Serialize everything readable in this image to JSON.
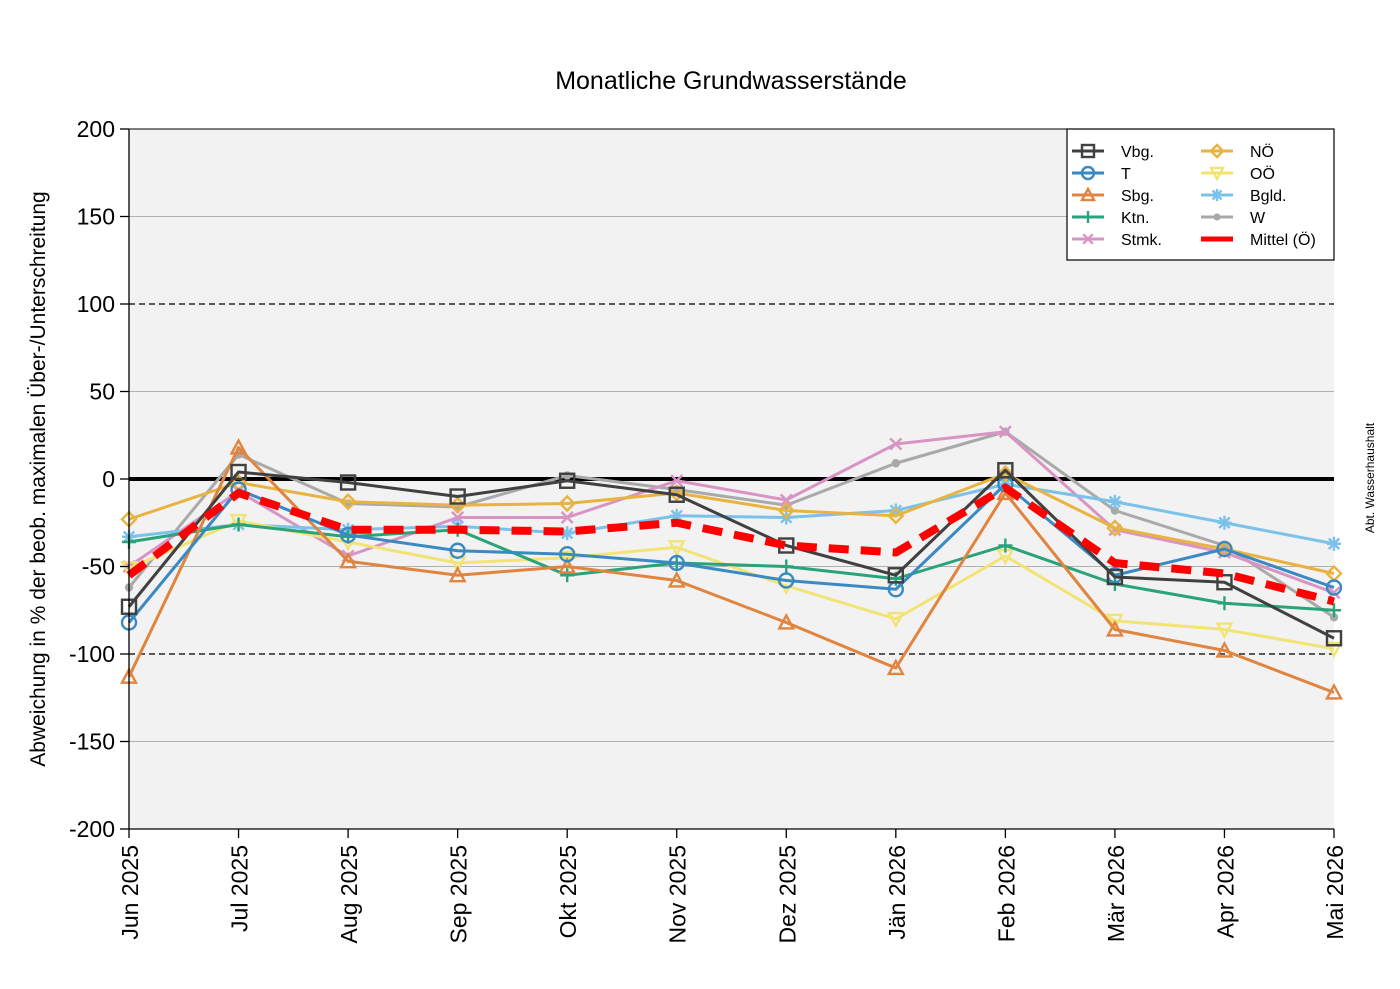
{
  "chart_data": {
    "type": "line",
    "title": "Monatliche Grundwasserstände",
    "ylabel": "Abweichung in % der beob. maximalen Über-/Unterschreitung",
    "side_note": "Abt. Wasserhaushalt",
    "ylim": [
      -200,
      200
    ],
    "yticks": [
      "200",
      "150",
      "100",
      "50",
      "0",
      "-50",
      "-100",
      "-150",
      "-200"
    ],
    "ytick_values": [
      200,
      150,
      100,
      50,
      0,
      -50,
      -100,
      -150,
      -200
    ],
    "categories": [
      "Jun 2025",
      "Jul 2025",
      "Aug 2025",
      "Sep 2025",
      "Okt 2025",
      "Nov 2025",
      "Dez 2025",
      "Jän 2026",
      "Feb 2026",
      "Mär 2026",
      "Apr 2026",
      "Mai 2026"
    ],
    "grid": "horizontal",
    "reference_lines": [
      100,
      -100
    ],
    "legend_position": "top-right",
    "series": [
      {
        "name": "Vbg.",
        "color": "#404040",
        "marker": "square",
        "values": [
          -73,
          4,
          -2,
          -10,
          -1,
          -9,
          -38,
          -55,
          5,
          -56,
          -59,
          -91
        ]
      },
      {
        "name": "T",
        "color": "#3a89c2",
        "marker": "circle",
        "values": [
          -82,
          -6,
          -32,
          -41,
          -43,
          -48,
          -58,
          -63,
          -3,
          -55,
          -40,
          -62
        ]
      },
      {
        "name": "Sbg.",
        "color": "#e0843f",
        "marker": "triangle",
        "values": [
          -113,
          18,
          -47,
          -55,
          -50,
          -58,
          -82,
          -108,
          -8,
          -86,
          -98,
          -122
        ]
      },
      {
        "name": "Ktn.",
        "color": "#2aa37a",
        "marker": "plus",
        "values": [
          -36,
          -26,
          -33,
          -29,
          -55,
          -48,
          -50,
          -57,
          -38,
          -60,
          -71,
          -75
        ]
      },
      {
        "name": "Stmk.",
        "color": "#d894c4",
        "marker": "x",
        "values": [
          -50,
          -7,
          -44,
          -22,
          -22,
          -1,
          -12,
          20,
          27,
          -29,
          -42,
          -65
        ]
      },
      {
        "name": "NÖ",
        "color": "#e9b33f",
        "marker": "diamond",
        "values": [
          -23,
          -2,
          -13,
          -15,
          -14,
          -8,
          -18,
          -21,
          3,
          -28,
          -40,
          -54
        ]
      },
      {
        "name": "OÖ",
        "color": "#f2e474",
        "marker": "triangle-down",
        "values": [
          -51,
          -24,
          -36,
          -48,
          -45,
          -39,
          -61,
          -80,
          -44,
          -81,
          -86,
          -97
        ]
      },
      {
        "name": "Bgld.",
        "color": "#7bc2ea",
        "marker": "asterisk",
        "values": [
          -33,
          -26,
          -29,
          -27,
          -31,
          -21,
          -22,
          -18,
          -3,
          -13,
          -25,
          -37
        ]
      },
      {
        "name": "W",
        "color": "#a9a9a9",
        "marker": "dot",
        "values": [
          -62,
          14,
          -14,
          -16,
          2,
          -6,
          -15,
          9,
          27,
          -18,
          -38,
          -79
        ]
      },
      {
        "name": "Mittel (Ö)",
        "color": "#ff0000",
        "marker": "none",
        "dashed": true,
        "values": [
          -55,
          -8,
          -29,
          -29,
          -30,
          -25,
          -38,
          -42,
          -5,
          -48,
          -54,
          -70
        ]
      }
    ]
  }
}
